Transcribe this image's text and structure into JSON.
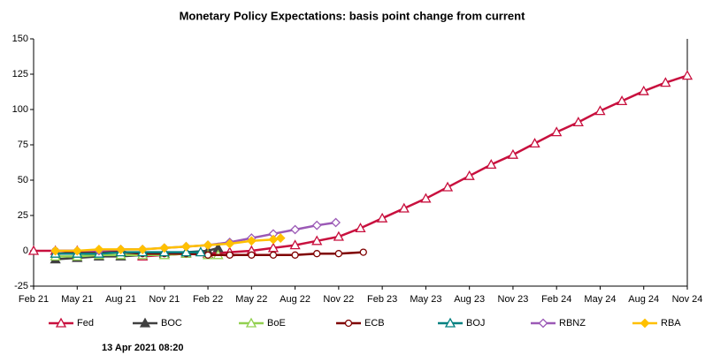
{
  "chart_data": {
    "type": "line",
    "title": "Monetary Policy Expectations: basis point change from current",
    "timestamp": "13 Apr 2021 08:20",
    "xlim": [
      0,
      45
    ],
    "xticks": [
      {
        "value": 0,
        "label": "Feb 21"
      },
      {
        "value": 3,
        "label": "May 21"
      },
      {
        "value": 6,
        "label": "Aug 21"
      },
      {
        "value": 9,
        "label": "Nov 21"
      },
      {
        "value": 12,
        "label": "Feb 22"
      },
      {
        "value": 15,
        "label": "May 22"
      },
      {
        "value": 18,
        "label": "Aug 22"
      },
      {
        "value": 21,
        "label": "Nov 22"
      },
      {
        "value": 24,
        "label": "Feb 23"
      },
      {
        "value": 27,
        "label": "May 23"
      },
      {
        "value": 30,
        "label": "Aug 23"
      },
      {
        "value": 33,
        "label": "Nov 23"
      },
      {
        "value": 36,
        "label": "Feb 24"
      },
      {
        "value": 39,
        "label": "May 24"
      },
      {
        "value": 42,
        "label": "Aug 24"
      },
      {
        "value": 45,
        "label": "Nov 24"
      }
    ],
    "ylim": [
      -25,
      150
    ],
    "yticks": [
      -25,
      0,
      25,
      50,
      75,
      100,
      125,
      150
    ],
    "series": [
      {
        "name": "Fed",
        "color": "#c8103e",
        "marker": "triangle",
        "marker_fill": "#ffffff",
        "x": [
          0,
          1.5,
          3,
          4.5,
          6,
          7.5,
          9,
          10.5,
          12,
          13.5,
          15,
          16.5,
          18,
          19.5,
          21,
          22.5,
          24,
          25.5,
          27,
          28.5,
          30,
          31.5,
          33,
          34.5,
          36,
          37.5,
          39,
          40.5,
          42,
          43.5,
          45
        ],
        "values": [
          0,
          0,
          0,
          0,
          0,
          -4,
          -3,
          -2,
          -2,
          -1,
          0,
          2,
          4,
          7,
          10,
          16,
          23,
          30,
          37,
          45,
          53,
          61,
          68,
          76,
          84,
          91,
          99,
          106,
          113,
          119,
          124
        ]
      },
      {
        "name": "BOC",
        "color": "#404040",
        "marker": "triangle",
        "marker_fill": "#404040",
        "x": [
          1.5,
          3,
          4.5,
          6,
          7.5,
          9,
          10.5,
          12,
          12.7
        ],
        "values": [
          -6,
          -5,
          -4,
          -4,
          -3,
          -2,
          -1,
          0,
          2
        ]
      },
      {
        "name": "BoE",
        "color": "#92d050",
        "marker": "triangle",
        "marker_fill": "#ffffff",
        "x": [
          1.5,
          3,
          4.5,
          6,
          7.5,
          9,
          10.5,
          12,
          12.7
        ],
        "values": [
          -4,
          -4,
          -3,
          -3,
          -3,
          -3,
          -2,
          -3,
          -3
        ]
      },
      {
        "name": "ECB",
        "color": "#7f0000",
        "marker": "circle",
        "marker_fill": "#ffffff",
        "x": [
          1.5,
          3,
          4.5,
          6,
          7.5,
          9,
          10.5,
          12,
          13.5,
          15,
          16.5,
          18,
          19.5,
          21,
          22.7
        ],
        "values": [
          0,
          -1,
          -1,
          -1,
          -2,
          -2,
          -2,
          -3,
          -3,
          -3,
          -3,
          -3,
          -2,
          -2,
          -1
        ]
      },
      {
        "name": "BOJ",
        "color": "#008080",
        "marker": "triangle",
        "marker_fill": "#ffffff",
        "x": [
          1.5,
          3,
          4.5,
          6,
          7.5,
          9,
          10.5,
          11.5
        ],
        "values": [
          -2,
          -2,
          -2,
          -1,
          -1,
          -1,
          -1,
          -1
        ]
      },
      {
        "name": "RBNZ",
        "color": "#9b59b6",
        "marker": "diamond",
        "marker_fill": "#ffffff",
        "x": [
          1.5,
          3,
          4.5,
          6,
          7.5,
          9,
          10.5,
          12,
          13.5,
          15,
          16.5,
          18,
          19.5,
          20.8
        ],
        "values": [
          0,
          0,
          0,
          1,
          1,
          2,
          3,
          4,
          6,
          9,
          12,
          15,
          18,
          20
        ]
      },
      {
        "name": "RBA",
        "color": "#ffc000",
        "marker": "diamond",
        "marker_fill": "#ffc000",
        "x": [
          1.5,
          3,
          4.5,
          6,
          7.5,
          9,
          10.5,
          12,
          13.5,
          15,
          16.5,
          17
        ],
        "values": [
          0,
          0,
          1,
          1,
          1,
          2,
          3,
          4,
          5,
          7,
          8,
          9
        ]
      }
    ]
  }
}
